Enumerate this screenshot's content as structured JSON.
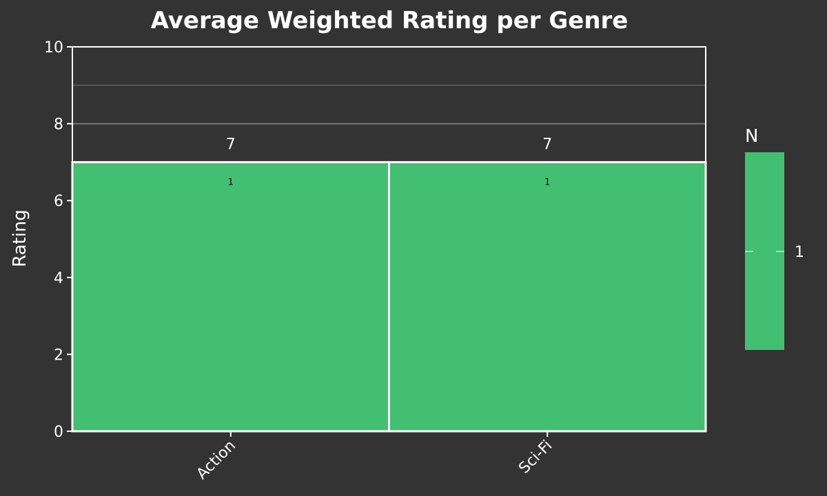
{
  "colors": {
    "background": "#333333",
    "bar_fill": "#43bf71",
    "text": "#ffffff",
    "gridline": "#777777"
  },
  "chart_data": {
    "type": "bar",
    "title": "Average Weighted Rating per Genre",
    "xlabel": "",
    "ylabel": "Rating",
    "categories": [
      "Action",
      "Sci-Fi"
    ],
    "values": [
      7,
      7
    ],
    "value_labels": [
      "7",
      "7"
    ],
    "count_labels": [
      "1",
      "1"
    ],
    "ylim": [
      0,
      10
    ],
    "yticks": [
      0,
      2,
      4,
      6,
      8,
      10
    ],
    "grid": true,
    "legend": {
      "title": "N",
      "entries": [
        "1"
      ],
      "placement": "right"
    }
  }
}
